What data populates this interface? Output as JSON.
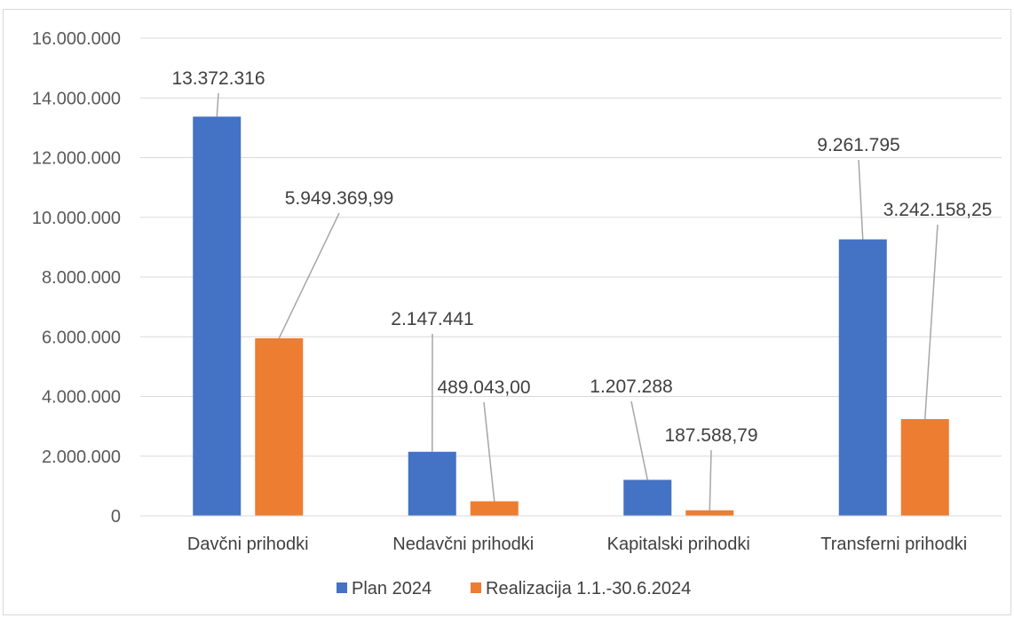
{
  "chart_data": {
    "type": "bar",
    "categories": [
      "Davčni prihodki",
      "Nedavčni prihodki",
      "Kapitalski prihodki",
      "Transferni prihodki"
    ],
    "series": [
      {
        "name": "Plan 2024",
        "color": "#4472c4",
        "values": [
          13372316,
          2147441,
          1207288,
          9261795
        ],
        "labels": [
          "13.372.316",
          "2.147.441",
          "1.207.288",
          "9.261.795"
        ]
      },
      {
        "name": "Realizacija 1.1.-30.6.2024",
        "color": "#ed7d31",
        "values": [
          5949369.99,
          489043.0,
          187588.79,
          3242158.25
        ],
        "labels": [
          "5.949.369,99",
          "489.043,00",
          "187.588,79",
          "3.242.158,25"
        ]
      }
    ],
    "yticks": [
      0,
      2000000,
      4000000,
      6000000,
      8000000,
      10000000,
      12000000,
      14000000,
      16000000
    ],
    "ytick_labels": [
      "0",
      "2.000.000",
      "4.000.000",
      "6.000.000",
      "8.000.000",
      "10.000.000",
      "12.000.000",
      "14.000.000",
      "16.000.000"
    ],
    "ylim": [
      0,
      16000000
    ],
    "grid": true,
    "legend_position": "bottom",
    "title": "",
    "xlabel": "",
    "ylabel": ""
  }
}
